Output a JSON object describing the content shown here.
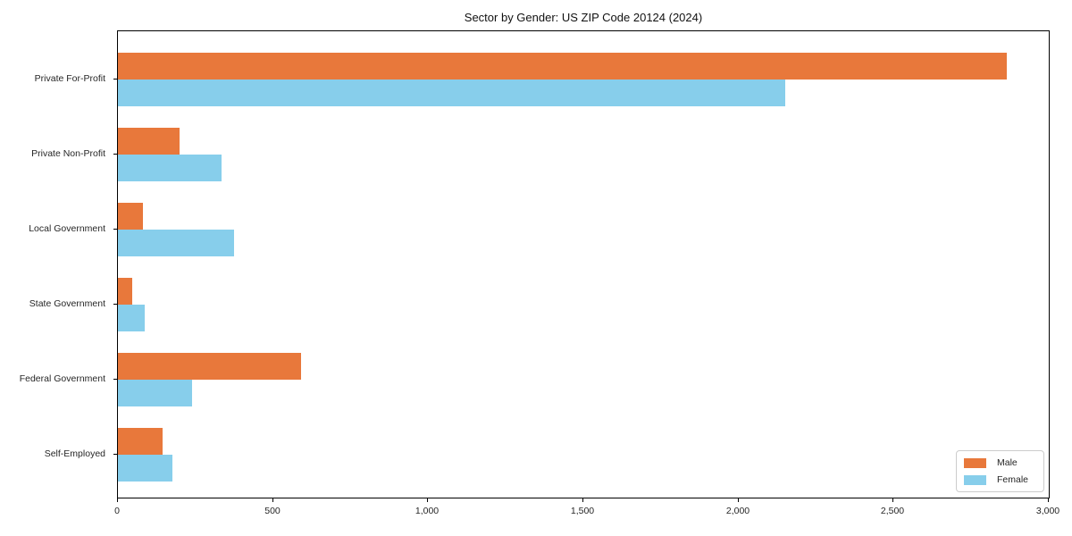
{
  "chart_data": {
    "type": "bar",
    "orientation": "horizontal",
    "title": "Sector by Gender: US ZIP Code 20124 (2024)",
    "categories": [
      "Private For-Profit",
      "Private Non-Profit",
      "Local Government",
      "State Government",
      "Federal Government",
      "Self-Employed"
    ],
    "series": [
      {
        "name": "Male",
        "color": "#E8783B",
        "values": [
          2865,
          200,
          80,
          45,
          590,
          145
        ]
      },
      {
        "name": "Female",
        "color": "#87CEEB",
        "values": [
          2150,
          335,
          375,
          85,
          240,
          175
        ]
      }
    ],
    "xlabel": "",
    "ylabel": "",
    "xlim": [
      0,
      3000
    ],
    "xticks": [
      0,
      500,
      1000,
      1500,
      2000,
      2500,
      3000
    ],
    "xtick_labels": [
      "0",
      "500",
      "1,000",
      "1,500",
      "2,000",
      "2,500",
      "3,000"
    ],
    "grid": false,
    "legend": {
      "position": "lower right",
      "entries": [
        "Male",
        "Female"
      ]
    }
  }
}
